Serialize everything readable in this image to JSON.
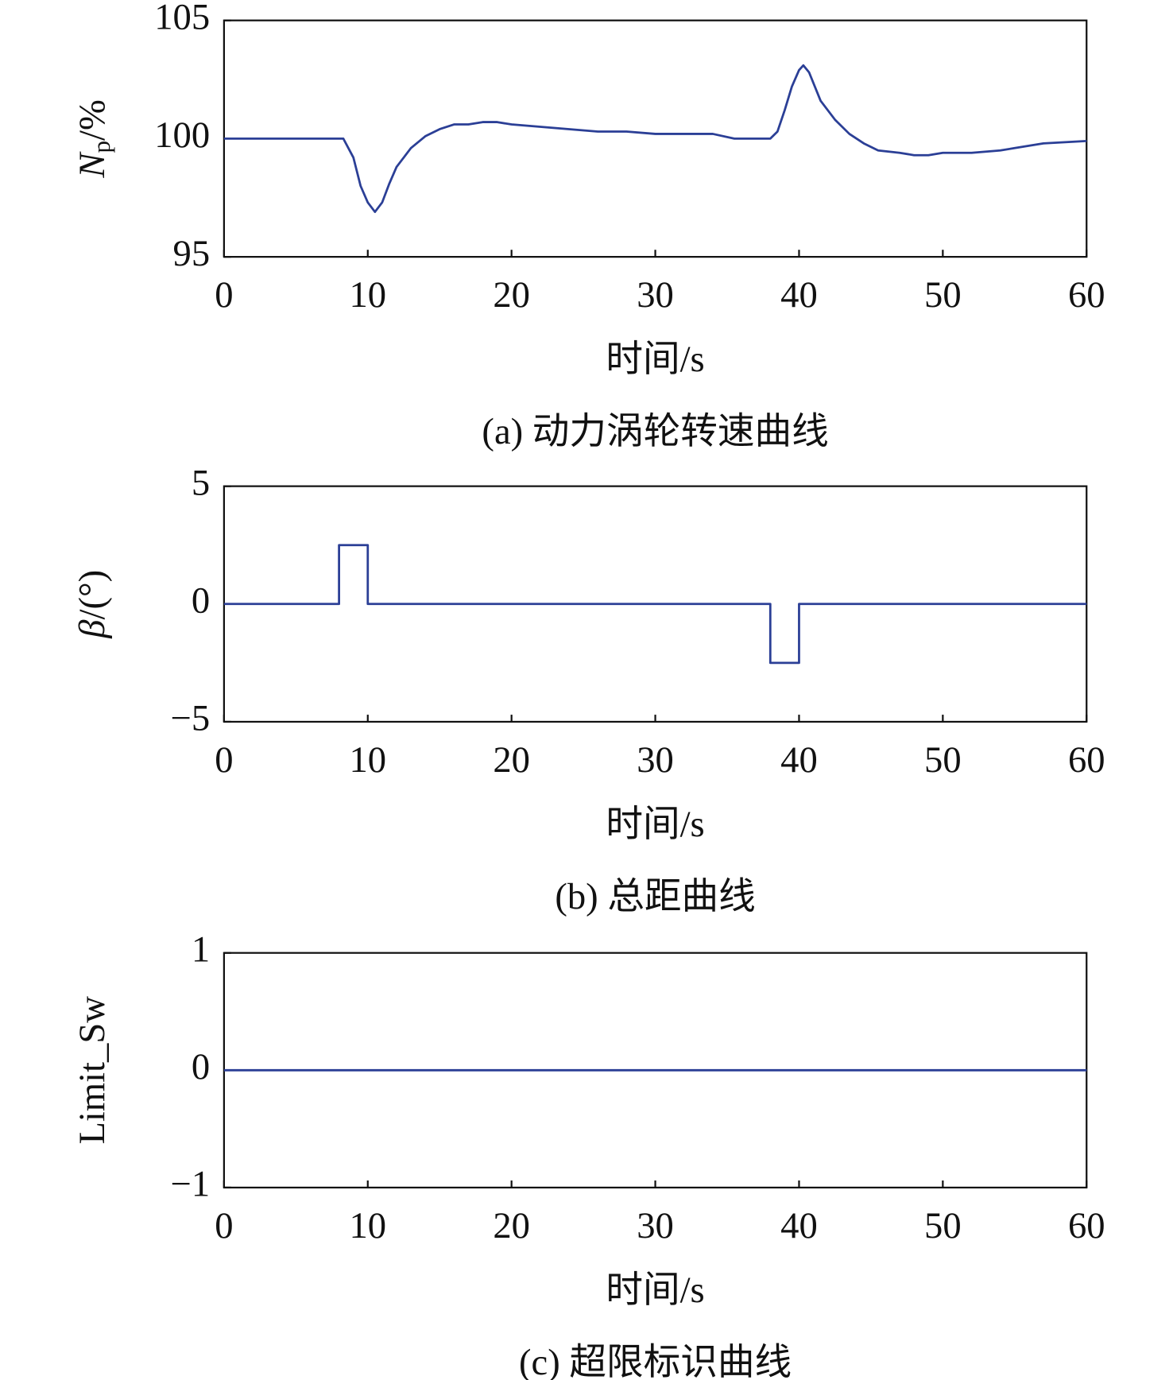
{
  "chart_data": [
    {
      "type": "line",
      "ylabel": [
        "N",
        "p",
        "/%"
      ],
      "xlabel": "时间/s",
      "caption": "(a) 动力涡轮转速曲线",
      "color": "#2b3f96",
      "x": [
        0,
        8.3,
        9,
        9.5,
        10,
        10.5,
        11,
        11.5,
        12,
        13,
        14,
        15,
        16,
        17,
        18,
        19,
        20,
        22,
        24,
        26,
        28,
        30,
        32,
        34,
        35.5,
        38,
        38.5,
        39,
        39.5,
        40,
        40.3,
        40.7,
        41.5,
        42.5,
        43.5,
        44.5,
        45.5,
        47,
        48,
        49,
        50,
        52,
        54,
        55,
        57,
        60
      ],
      "values": [
        100,
        100,
        99.2,
        98,
        97.3,
        96.9,
        97.3,
        98.1,
        98.8,
        99.6,
        100.1,
        100.4,
        100.6,
        100.6,
        100.7,
        100.7,
        100.6,
        100.5,
        100.4,
        100.3,
        100.3,
        100.2,
        100.2,
        100.2,
        100.0,
        100.0,
        100.3,
        101.2,
        102.2,
        102.9,
        103.1,
        102.8,
        101.6,
        100.8,
        100.2,
        99.8,
        99.5,
        99.4,
        99.3,
        99.3,
        99.4,
        99.4,
        99.5,
        99.6,
        99.8,
        99.9
      ],
      "xlim": [
        0,
        60
      ],
      "xticks": [
        0,
        10,
        20,
        30,
        40,
        50,
        60
      ],
      "ylim": [
        95,
        105
      ],
      "yticks": [
        95,
        100,
        105
      ],
      "grid": false
    },
    {
      "type": "line",
      "ylabel": [
        "β",
        "/(°)"
      ],
      "xlabel": "时间/s",
      "caption": "(b) 总距曲线",
      "color": "#2b3f96",
      "x": [
        0,
        8,
        8,
        10,
        10,
        38,
        38,
        40,
        40,
        60
      ],
      "values": [
        0,
        0,
        2.5,
        2.5,
        0,
        0,
        -2.5,
        -2.5,
        0,
        0
      ],
      "xlim": [
        0,
        60
      ],
      "xticks": [
        0,
        10,
        20,
        30,
        40,
        50,
        60
      ],
      "ylim": [
        -5,
        5
      ],
      "yticks": [
        {
          "value": -5,
          "label": "−5"
        },
        0,
        5
      ],
      "grid": false
    },
    {
      "type": "line",
      "ylabel": [
        "Limit_Sw"
      ],
      "xlabel": "时间/s",
      "caption": "(c) 超限标识曲线",
      "color": "#2b3f96",
      "x": [
        0,
        60
      ],
      "values": [
        0,
        0
      ],
      "xlim": [
        0,
        60
      ],
      "xticks": [
        0,
        10,
        20,
        30,
        40,
        50,
        60
      ],
      "ylim": [
        -1,
        1
      ],
      "yticks": [
        {
          "value": -1,
          "label": "−1"
        },
        0,
        1
      ],
      "grid": false
    }
  ]
}
